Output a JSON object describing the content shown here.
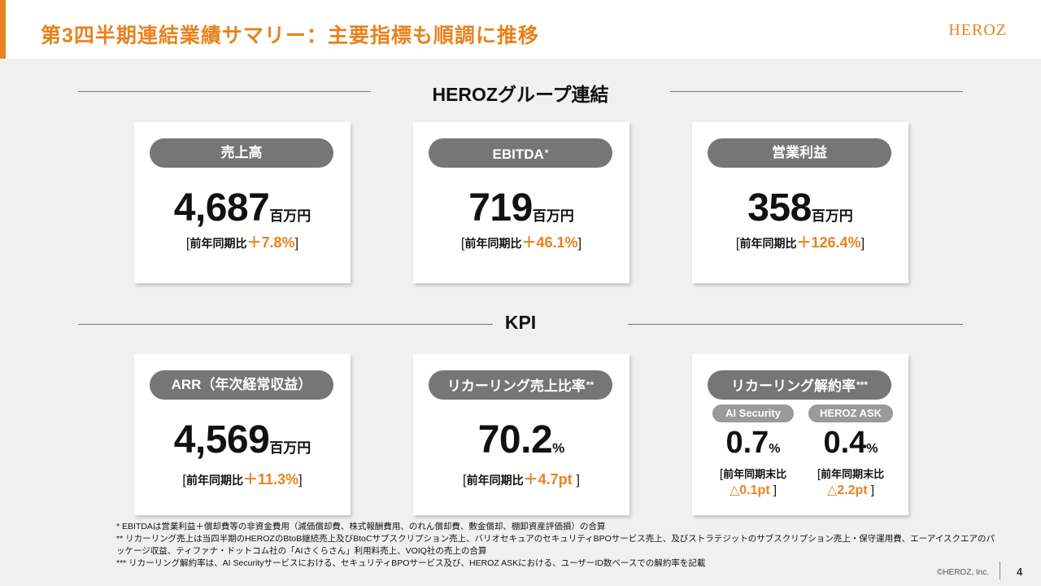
{
  "header": {
    "title": "第3四半期連結業績サマリー：主要指標も順調に推移",
    "logo": "HEROZ",
    "accent_color": "#e8821e"
  },
  "section_group": {
    "label": "HEROZグループ連結"
  },
  "section_kpi": {
    "label": "KPI"
  },
  "cards": {
    "sales": {
      "label": "売上高",
      "value": "4,687",
      "unit": "百万円",
      "yoy_label": "前年同期比",
      "yoy_value": "＋7.8%"
    },
    "ebitda": {
      "label": "EBITDA",
      "label_mark": "*",
      "value": "719",
      "unit": "百万円",
      "yoy_label": "前年同期比",
      "yoy_value": "＋46.1%"
    },
    "operating": {
      "label": "営業利益",
      "value": "358",
      "unit": "百万円",
      "yoy_label": "前年同期比",
      "yoy_value": "＋126.4%"
    },
    "arr": {
      "label": "ARR（年次経常収益）",
      "value": "4,569",
      "unit": "百万円",
      "yoy_label": "前年同期比",
      "yoy_value": "＋11.3%"
    },
    "recurring_ratio": {
      "label": "リカーリング売上比率",
      "label_mark": "**",
      "value": "70.2",
      "unit": "%",
      "yoy_label": "前年同期比",
      "yoy_value": "＋4.7pt"
    },
    "churn": {
      "label": "リカーリング解約率",
      "label_mark": "***",
      "ai_security": {
        "label": "AI Security",
        "value": "0.7",
        "unit": "%",
        "yoy_label": "前年同期末比",
        "yoy_value": "△0.1pt"
      },
      "heroz_ask": {
        "label": "HEROZ ASK",
        "value": "0.4",
        "unit": "%",
        "yoy_label": "前年同期末比",
        "yoy_value": "△2.2pt"
      }
    }
  },
  "notes": {
    "n1": "* EBITDAは営業利益＋償却費等の非資金費用（減価償却費、株式報酬費用、のれん償却費、敷金償却、棚卸資産評価損）の合算",
    "n2": "** リカーリング売上は当四半期のHEROZのBtoB継続売上及びBtoCサブスクリプション売上、バリオセキュアのセキュリティBPOサービス売上、及びストラテジットのサブスクリプション売上・保守運用費、エーアイスクエアのパッケージ収益、ティファナ・ドットコム社の「AIさくらさん」利用料売上、VOIQ社の売上の合算",
    "n3": "*** リカーリング解約率は、AI Securityサービスにおける、セキュリティBPOサービス及び、HEROZ ASKにおける、ユーザーID数ベースでの解約率を記載"
  },
  "footer": {
    "copyright": "©HEROZ, Inc.",
    "page": "4"
  }
}
